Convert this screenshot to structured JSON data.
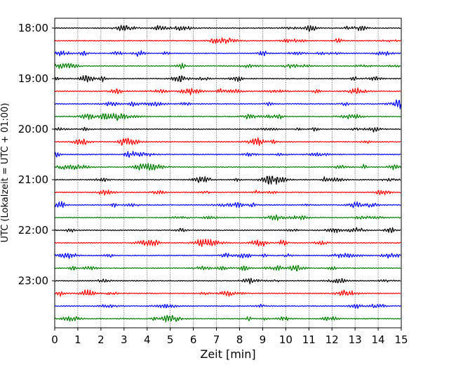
{
  "chart_data": {
    "type": "line",
    "title": "",
    "xlabel": "Zeit  [min]",
    "ylabel": "UTC (Lokalzeit = UTC + 01:00)",
    "xlim": [
      0,
      15
    ],
    "x_ticks": [
      "0",
      "1",
      "2",
      "3",
      "4",
      "5",
      "6",
      "7",
      "8",
      "9",
      "10",
      "11",
      "12",
      "13",
      "14",
      "15"
    ],
    "y_tick_labels": [
      "18:00",
      "19:00",
      "20:00",
      "21:00",
      "22:00",
      "23:00"
    ],
    "trace_minutes_per_line": 15,
    "rows_start": "18:00",
    "row_count": 24,
    "color_cycle": [
      "#000000",
      "#ff0000",
      "#0000ff",
      "#007f00"
    ],
    "grid": {
      "x": true,
      "y": false,
      "style": "dotted"
    }
  }
}
